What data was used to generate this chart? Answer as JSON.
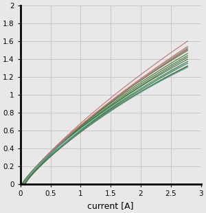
{
  "xlabel": "current [A]",
  "xlim": [
    0,
    3
  ],
  "ylim": [
    0,
    2
  ],
  "xticks": [
    0,
    0.5,
    1,
    1.5,
    2,
    2.5,
    3
  ],
  "yticks": [
    0,
    0.2,
    0.4,
    0.6,
    0.8,
    1,
    1.2,
    1.4,
    1.6,
    1.8,
    2
  ],
  "n_diodes": 16,
  "colors_green": [
    "#3a6e30",
    "#3a7030",
    "#406838",
    "#3d7032",
    "#427234",
    "#3e6c31",
    "#456e35",
    "#387033",
    "#3b6c2e",
    "#426835"
  ],
  "colors_red": [
    "#b87070",
    "#c07878",
    "#b86868",
    "#c07272"
  ],
  "colors_cyan": [
    "#50b0a0",
    "#48a898"
  ],
  "background": "#e8e8e8",
  "grid_color": "#c8c8c8",
  "spine_color": "#000000",
  "seed": 12
}
